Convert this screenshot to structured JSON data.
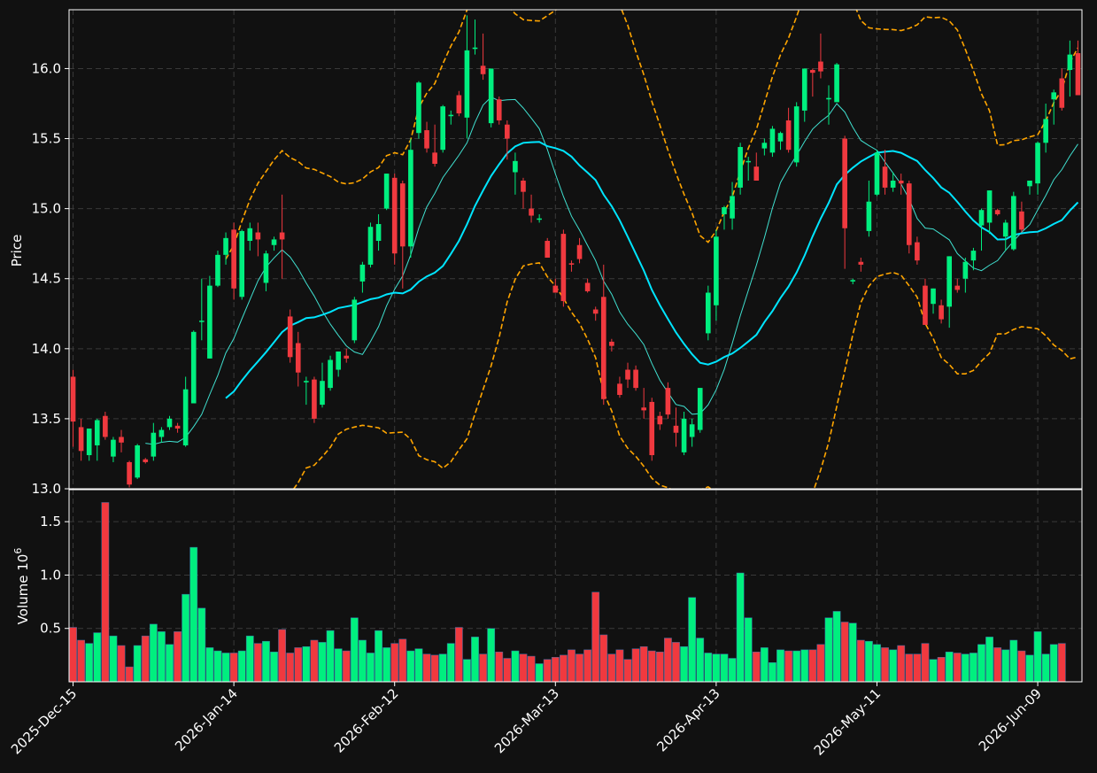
{
  "chart_data": {
    "type": "candlestick",
    "theme": {
      "background": "#111111",
      "up_color": "#00ef7f",
      "down_color": "#f0393f",
      "grid_color": "#3a3a3a",
      "axis_color": "#ffffff",
      "bollinger_color": "#ffa500",
      "ma_fast_color": "#40e0d0",
      "ma_slow_color": "#00e5ff"
    },
    "ylabel": "Price",
    "volume_ylabel": "Volume  10",
    "volume_ylabel_exp": "6",
    "ylim": [
      13.0,
      16.42
    ],
    "volume_ylim": [
      0.0,
      1.8
    ],
    "yticks": [
      "13.0",
      "13.5",
      "14.0",
      "14.5",
      "15.0",
      "15.5",
      "16.0"
    ],
    "volume_yticks": [
      "0.5",
      "1.0",
      "1.5"
    ],
    "xtick_labels": [
      "2025-Dec-15",
      "2026-Jan-14",
      "2026-Feb-12",
      "2026-Mar-13",
      "2026-Apr-13",
      "2026-May-11",
      "2026-Jun-09"
    ],
    "xtick_index": [
      0,
      20,
      40,
      60,
      80,
      100,
      120
    ],
    "grid": true,
    "ohlc": [
      [
        13.8,
        13.85,
        13.3,
        13.48
      ],
      [
        13.44,
        13.5,
        13.2,
        13.27
      ],
      [
        13.24,
        13.43,
        13.2,
        13.43
      ],
      [
        13.31,
        13.5,
        13.2,
        13.49
      ],
      [
        13.52,
        13.55,
        13.35,
        13.37
      ],
      [
        13.23,
        13.37,
        13.19,
        13.35
      ],
      [
        13.37,
        13.42,
        13.26,
        13.33
      ],
      [
        13.19,
        13.2,
        13.01,
        13.03
      ],
      [
        13.08,
        13.32,
        13.07,
        13.31
      ],
      [
        13.21,
        13.22,
        13.18,
        13.19
      ],
      [
        13.23,
        13.47,
        13.2,
        13.4
      ],
      [
        13.37,
        13.44,
        13.33,
        13.42
      ],
      [
        13.44,
        13.52,
        13.42,
        13.5
      ],
      [
        13.45,
        13.47,
        13.4,
        13.43
      ],
      [
        13.31,
        13.8,
        13.3,
        13.71
      ],
      [
        13.61,
        14.13,
        13.61,
        14.12
      ],
      [
        14.2,
        14.5,
        14.06,
        14.2
      ],
      [
        13.93,
        14.52,
        13.93,
        14.45
      ],
      [
        14.45,
        14.7,
        14.44,
        14.67
      ],
      [
        14.67,
        14.83,
        14.6,
        14.79
      ],
      [
        14.85,
        14.9,
        14.35,
        14.43
      ],
      [
        14.37,
        14.85,
        14.35,
        14.84
      ],
      [
        14.77,
        14.9,
        14.7,
        14.86
      ],
      [
        14.83,
        14.9,
        14.66,
        14.78
      ],
      [
        14.47,
        14.7,
        14.41,
        14.68
      ],
      [
        14.74,
        14.8,
        14.7,
        14.78
      ],
      [
        14.83,
        15.1,
        14.5,
        14.78
      ],
      [
        14.23,
        14.28,
        13.9,
        13.94
      ],
      [
        14.04,
        14.12,
        13.73,
        13.83
      ],
      [
        13.76,
        13.8,
        13.6,
        13.77
      ],
      [
        13.78,
        13.8,
        13.47,
        13.5
      ],
      [
        13.6,
        13.9,
        13.58,
        13.77
      ],
      [
        13.72,
        13.95,
        13.7,
        13.92
      ],
      [
        13.85,
        13.98,
        13.8,
        13.98
      ],
      [
        13.95,
        14.0,
        13.9,
        13.93
      ],
      [
        14.06,
        14.37,
        14.04,
        14.35
      ],
      [
        14.48,
        14.62,
        14.4,
        14.6
      ],
      [
        14.6,
        14.9,
        14.58,
        14.87
      ],
      [
        14.77,
        14.96,
        14.7,
        14.89
      ],
      [
        15.0,
        15.25,
        14.99,
        15.25
      ],
      [
        15.22,
        15.25,
        14.6,
        14.68
      ],
      [
        15.18,
        15.2,
        14.43,
        14.73
      ],
      [
        14.73,
        15.5,
        14.65,
        15.42
      ],
      [
        15.54,
        15.91,
        15.5,
        15.9
      ],
      [
        15.56,
        15.62,
        15.4,
        15.43
      ],
      [
        15.4,
        15.6,
        15.3,
        15.32
      ],
      [
        15.42,
        15.74,
        15.4,
        15.73
      ],
      [
        15.66,
        15.7,
        15.6,
        15.67
      ],
      [
        15.81,
        15.84,
        15.66,
        15.68
      ],
      [
        15.65,
        16.38,
        15.5,
        16.13
      ],
      [
        16.14,
        16.35,
        16.1,
        16.15
      ],
      [
        16.02,
        16.25,
        15.92,
        15.96
      ],
      [
        15.61,
        16.0,
        15.58,
        16.0
      ],
      [
        15.78,
        15.8,
        15.6,
        15.63
      ],
      [
        15.6,
        15.63,
        15.35,
        15.5
      ],
      [
        15.26,
        15.4,
        15.1,
        15.34
      ],
      [
        15.2,
        15.22,
        15.0,
        15.12
      ],
      [
        15.0,
        15.1,
        14.9,
        14.95
      ],
      [
        14.93,
        14.96,
        14.9,
        14.93
      ],
      [
        14.77,
        14.79,
        14.65,
        14.65
      ],
      [
        14.45,
        14.5,
        14.4,
        14.4
      ],
      [
        14.82,
        14.85,
        14.3,
        14.34
      ],
      [
        14.61,
        14.63,
        14.55,
        14.6
      ],
      [
        14.74,
        14.79,
        14.61,
        14.64
      ],
      [
        14.47,
        14.5,
        14.4,
        14.41
      ],
      [
        14.28,
        14.3,
        14.2,
        14.25
      ],
      [
        14.37,
        14.6,
        13.6,
        13.64
      ],
      [
        14.05,
        14.07,
        13.98,
        14.02
      ],
      [
        13.75,
        13.8,
        13.65,
        13.67
      ],
      [
        13.85,
        13.9,
        13.72,
        13.78
      ],
      [
        13.85,
        13.88,
        13.7,
        13.72
      ],
      [
        13.58,
        13.72,
        13.5,
        13.56
      ],
      [
        13.62,
        13.65,
        13.2,
        13.24
      ],
      [
        13.52,
        13.55,
        13.42,
        13.46
      ],
      [
        13.72,
        13.76,
        13.5,
        13.53
      ],
      [
        13.45,
        13.58,
        13.3,
        13.4
      ],
      [
        13.26,
        13.55,
        13.24,
        13.5
      ],
      [
        13.37,
        13.5,
        13.3,
        13.46
      ],
      [
        13.42,
        13.72,
        13.4,
        13.72
      ],
      [
        14.11,
        14.45,
        14.06,
        14.4
      ],
      [
        14.31,
        14.85,
        14.2,
        14.8
      ],
      [
        14.96,
        15.02,
        14.85,
        15.01
      ],
      [
        14.93,
        15.19,
        14.85,
        15.09
      ],
      [
        15.15,
        15.47,
        15.1,
        15.44
      ],
      [
        15.34,
        15.37,
        15.2,
        15.34
      ],
      [
        15.3,
        15.4,
        15.2,
        15.2
      ],
      [
        15.43,
        15.5,
        15.38,
        15.47
      ],
      [
        15.4,
        15.59,
        15.37,
        15.57
      ],
      [
        15.48,
        15.55,
        15.42,
        15.54
      ],
      [
        15.63,
        15.72,
        15.4,
        15.42
      ],
      [
        15.33,
        15.76,
        15.3,
        15.73
      ],
      [
        15.7,
        16.0,
        15.62,
        16.0
      ],
      [
        15.99,
        16.0,
        15.8,
        15.97
      ],
      [
        16.05,
        16.25,
        15.93,
        15.98
      ],
      [
        15.78,
        15.88,
        15.6,
        15.79
      ],
      [
        15.76,
        16.04,
        15.76,
        16.03
      ],
      [
        15.5,
        15.52,
        14.57,
        14.86
      ],
      [
        14.48,
        14.5,
        14.46,
        14.49
      ],
      [
        14.62,
        14.65,
        14.55,
        14.6
      ],
      [
        14.84,
        15.2,
        14.8,
        15.05
      ],
      [
        15.1,
        15.42,
        15.09,
        15.4
      ],
      [
        15.3,
        15.42,
        15.1,
        15.15
      ],
      [
        15.15,
        15.26,
        15.12,
        15.2
      ],
      [
        15.2,
        15.25,
        15.1,
        15.18
      ],
      [
        15.18,
        15.2,
        14.68,
        14.74
      ],
      [
        14.76,
        14.8,
        14.6,
        14.63
      ],
      [
        14.45,
        14.5,
        14.17,
        14.17
      ],
      [
        14.32,
        14.43,
        14.25,
        14.43
      ],
      [
        14.31,
        14.35,
        14.18,
        14.21
      ],
      [
        14.3,
        14.66,
        14.15,
        14.66
      ],
      [
        14.45,
        14.5,
        14.4,
        14.42
      ],
      [
        14.5,
        14.65,
        14.4,
        14.62
      ],
      [
        14.63,
        14.72,
        14.56,
        14.7
      ],
      [
        14.88,
        15.0,
        14.7,
        14.99
      ],
      [
        14.9,
        15.13,
        14.82,
        15.13
      ],
      [
        14.99,
        15.0,
        14.95,
        14.96
      ],
      [
        14.8,
        14.92,
        14.7,
        14.9
      ],
      [
        14.71,
        15.12,
        14.7,
        15.09
      ],
      [
        14.98,
        15.05,
        14.83,
        14.85
      ],
      [
        15.16,
        15.2,
        15.1,
        15.2
      ],
      [
        15.18,
        15.48,
        15.1,
        15.47
      ],
      [
        15.47,
        15.75,
        15.4,
        15.64
      ],
      [
        15.78,
        15.85,
        15.6,
        15.83
      ],
      [
        15.93,
        16.0,
        15.7,
        15.72
      ],
      [
        15.99,
        16.2,
        15.8,
        16.1
      ],
      [
        16.11,
        16.2,
        15.81,
        15.81
      ]
    ],
    "volume": [
      0.51,
      0.39,
      0.36,
      0.46,
      1.68,
      0.43,
      0.34,
      0.14,
      0.34,
      0.43,
      0.54,
      0.47,
      0.35,
      0.47,
      0.82,
      1.26,
      0.69,
      0.32,
      0.29,
      0.27,
      0.27,
      0.29,
      0.43,
      0.36,
      0.38,
      0.28,
      0.49,
      0.27,
      0.32,
      0.33,
      0.39,
      0.37,
      0.48,
      0.31,
      0.29,
      0.6,
      0.39,
      0.27,
      0.48,
      0.32,
      0.36,
      0.4,
      0.29,
      0.31,
      0.26,
      0.25,
      0.26,
      0.36,
      0.51,
      0.21,
      0.42,
      0.26,
      0.5,
      0.28,
      0.22,
      0.29,
      0.26,
      0.24,
      0.17,
      0.21,
      0.23,
      0.25,
      0.3,
      0.26,
      0.3,
      0.84,
      0.44,
      0.26,
      0.3,
      0.21,
      0.31,
      0.33,
      0.29,
      0.28,
      0.41,
      0.37,
      0.33,
      0.79,
      0.41,
      0.27,
      0.26,
      0.26,
      0.22,
      1.02,
      0.6,
      0.28,
      0.32,
      0.18,
      0.3,
      0.29,
      0.29,
      0.3,
      0.3,
      0.35,
      0.6,
      0.66,
      0.56,
      0.55,
      0.39,
      0.38,
      0.35,
      0.32,
      0.3,
      0.34,
      0.26,
      0.26,
      0.36,
      0.21,
      0.23,
      0.28,
      0.27,
      0.26,
      0.27,
      0.35,
      0.42,
      0.32,
      0.3,
      0.39,
      0.29,
      0.25,
      0.47,
      0.26,
      0.35,
      0.36
    ],
    "ma_windows": [
      10,
      20
    ],
    "bollinger": {
      "window": 20,
      "num_std": 2
    }
  }
}
